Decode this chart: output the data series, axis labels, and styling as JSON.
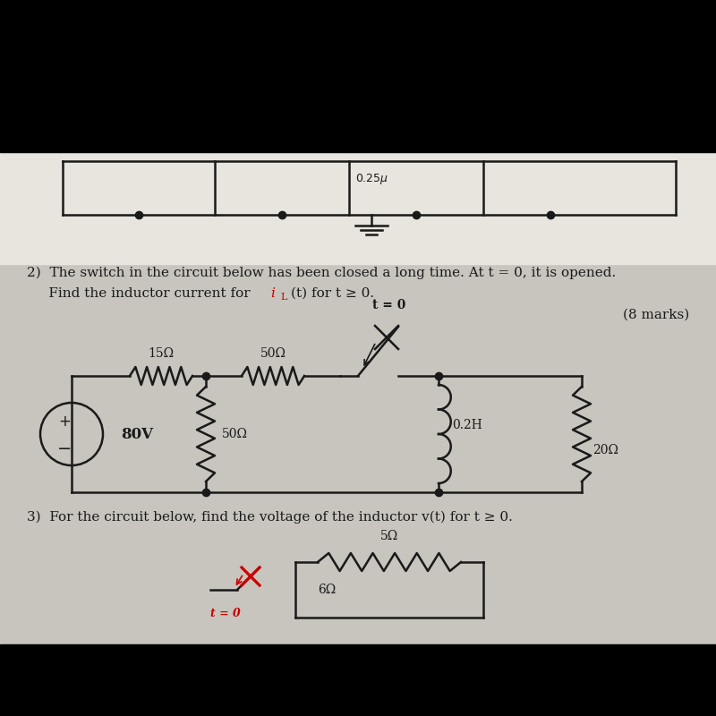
{
  "bg_top_color": "#000000",
  "bg_color": "#c8c4be",
  "paper_color": "#e8e4de",
  "text_color": "#1a1a1a",
  "line_color": "#1a1a1a",
  "red_color": "#cc0000",
  "problem2_line1": "2)  The switch in the circuit below has been closed a long time. At t = 0, it is opened.",
  "problem2_line2a": "     Find the inductor current for ",
  "problem2_iL": "i",
  "problem2_L": "L",
  "problem2_line2b": "(t) for t ≥ 0.",
  "marks_text": "(8 marks)",
  "t0_label": "t = 0",
  "r1_label": "15Ω",
  "r2_label": "50Ω",
  "r3_label": "50Ω",
  "r4_label": "20Ω",
  "l1_label": "0.2H",
  "v1_label": "80V",
  "problem3_text": "3)  For the circuit below, find the voltage of the inductor v(t) for t ≥ 0.",
  "r5_label": "5Ω",
  "r6_label": "6Ω",
  "t0_label2": "t = 0"
}
